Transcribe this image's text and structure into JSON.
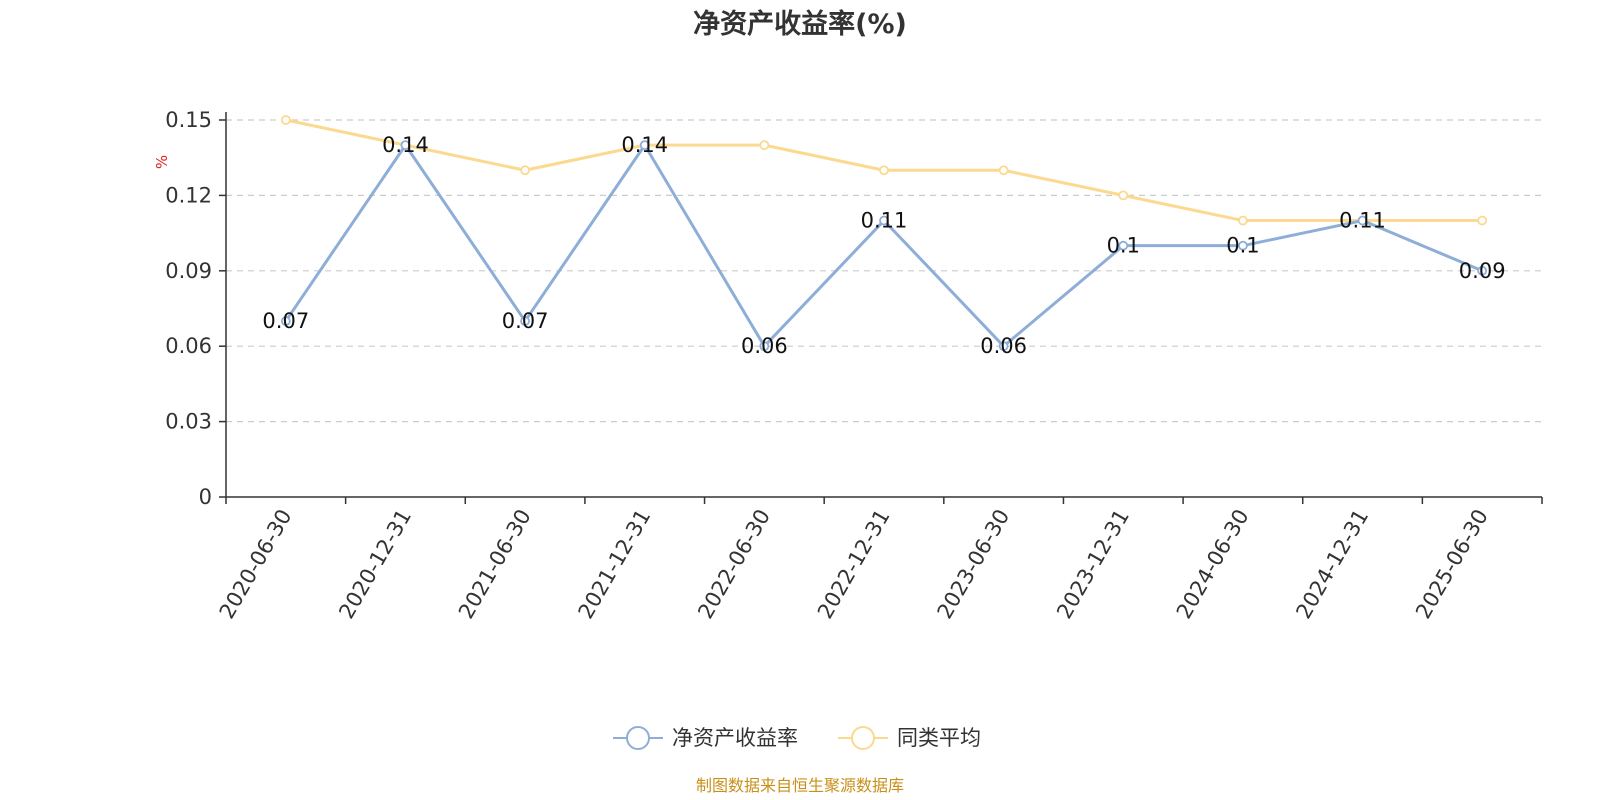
{
  "chart_data": {
    "type": "line",
    "title": "净资产收益率(%)",
    "ylabel": "%",
    "xlabel": "",
    "categories": [
      "2020-06-30",
      "2020-12-31",
      "2021-06-30",
      "2021-12-31",
      "2022-06-30",
      "2022-12-31",
      "2023-06-30",
      "2023-12-31",
      "2024-06-30",
      "2024-12-31",
      "2025-06-30"
    ],
    "ylim": [
      0,
      0.15
    ],
    "yticks": [
      "0",
      "0.03",
      "0.06",
      "0.09",
      "0.12",
      "0.15"
    ],
    "grid": true,
    "legend_position": "bottom",
    "series": [
      {
        "name": "净资产收益率",
        "color": "#8eaed8",
        "values": [
          0.07,
          0.14,
          0.07,
          0.14,
          0.06,
          0.11,
          0.06,
          0.1,
          0.1,
          0.11,
          0.09
        ],
        "labels": [
          "0.07",
          "0.14",
          "0.07",
          "0.14",
          "0.06",
          "0.11",
          "0.06",
          "0.1",
          "0.1",
          "0.11",
          "0.09"
        ]
      },
      {
        "name": "同类平均",
        "color": "#fbd98f",
        "values": [
          0.15,
          0.14,
          0.13,
          0.14,
          0.14,
          0.13,
          0.13,
          0.12,
          0.11,
          0.11,
          0.11
        ]
      }
    ]
  },
  "colors": {
    "unit_label": "#e02020",
    "source": "#c8901a",
    "grid": "#cccccc",
    "axis": "#333333"
  },
  "source_text": "制图数据来自恒生聚源数据库"
}
